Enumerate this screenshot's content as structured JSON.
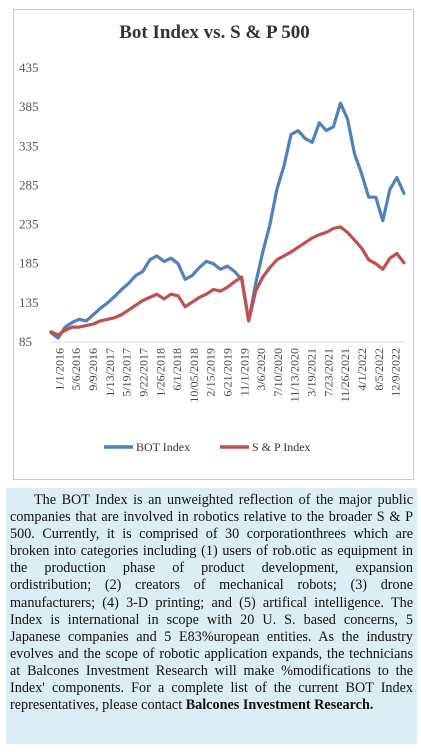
{
  "chart_data": {
    "type": "line",
    "title": "Bot Index vs. S & P 500",
    "y_ticks": [
      85,
      135,
      185,
      235,
      285,
      335,
      385,
      435
    ],
    "ylim": [
      85,
      435
    ],
    "x_tick_labels": [
      "1/1/2016",
      "5/6/2016",
      "9/9/2016",
      "1/13/2017",
      "5/19/2017",
      "9/22/2017",
      "1/26/2018",
      "6/1/2018",
      "10/05/2018",
      "2/15/2019",
      "6/21/2019",
      "11/1/2019",
      "3/6/2020",
      "7/10/2020",
      "11/13/2020",
      "3/19/2021",
      "7/23/2021",
      "11/26/2021",
      "4/1/2022",
      "8/5/2022",
      "12/9/2022"
    ],
    "series": [
      {
        "name": "BOT Index",
        "color": "#4f81bd",
        "values": [
          97,
          90,
          104,
          110,
          114,
          112,
          120,
          128,
          135,
          143,
          152,
          160,
          170,
          175,
          190,
          195,
          188,
          192,
          185,
          165,
          170,
          180,
          188,
          185,
          178,
          182,
          175,
          165,
          112,
          160,
          200,
          235,
          280,
          310,
          350,
          355,
          345,
          340,
          365,
          355,
          360,
          390,
          370,
          325,
          300,
          270,
          270,
          240,
          280,
          295,
          275
        ]
      },
      {
        "name": "S & P Index",
        "color": "#c0504d",
        "values": [
          98,
          94,
          100,
          104,
          104,
          106,
          108,
          112,
          114,
          116,
          120,
          126,
          132,
          138,
          142,
          146,
          140,
          146,
          144,
          130,
          136,
          142,
          146,
          152,
          150,
          155,
          162,
          168,
          112,
          150,
          168,
          180,
          190,
          195,
          200,
          206,
          212,
          218,
          222,
          225,
          230,
          232,
          225,
          215,
          205,
          190,
          185,
          178,
          192,
          198,
          186
        ]
      }
    ],
    "legend": {
      "placement": "bottom"
    }
  },
  "description": {
    "main": "The BOT Index is an unweighted reflection of the major public companies that are involved in robotics relative to the broader S & P 500. Currently, it is comprised of 30 corporationthrees which are broken into categories including (1) users of rob.otic as equipment in the production phase of product development, expansion ordistribution; (2) creators of mechanical robots; (3) drone manufacturers; (4) 3-D printing; and (5) artifical intelligence. The Index is international in scope with 20 U. S. based concerns, 5 Japanese companies and 5 E83%uropean entities. As the industry evolves and the scope of robotic application expands, the technicians at Balcones Investment Research will make %modifications to the Index' components. For a  complete list of the current BOT Index representatives, please contact",
    "contact": "Balcones Investment Research."
  }
}
